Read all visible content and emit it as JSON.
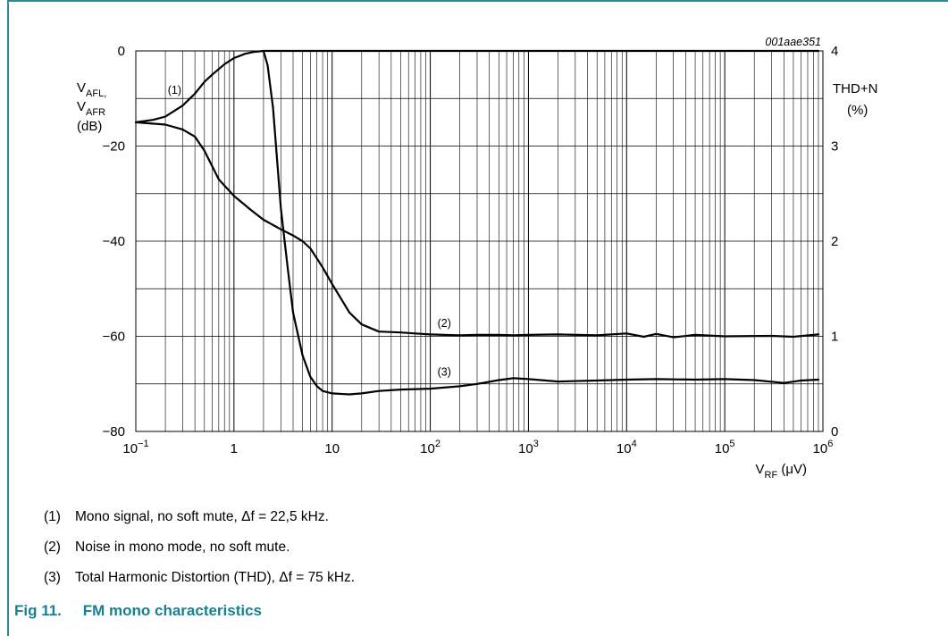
{
  "page": {
    "figure_number": "Fig 11.",
    "figure_title": "FM mono characteristics",
    "notes": [
      {
        "num": "(1)",
        "text": "Mono signal, no soft mute, Δf = 22,5 kHz."
      },
      {
        "num": "(2)",
        "text": "Noise in mono mode, no soft mute."
      },
      {
        "num": "(3)",
        "text": "Total Harmonic Distortion (THD), Δf = 75 kHz."
      }
    ]
  },
  "colors": {
    "accent": "#1a7f8f",
    "frame": "#2d8a99",
    "curve": "#000000",
    "grid": "#000000"
  },
  "chart_data": {
    "type": "line",
    "id_label": "001aae351",
    "x_scale": "log",
    "xlim": [
      0.1,
      1000000
    ],
    "x_ticks": [
      {
        "v": 0.1,
        "base": "10",
        "exp": "−1"
      },
      {
        "v": 1,
        "base": "1",
        "exp": ""
      },
      {
        "v": 10,
        "base": "10",
        "exp": ""
      },
      {
        "v": 100,
        "base": "10",
        "exp": "2"
      },
      {
        "v": 1000,
        "base": "10",
        "exp": "3"
      },
      {
        "v": 10000,
        "base": "10",
        "exp": "4"
      },
      {
        "v": 100000,
        "base": "10",
        "exp": "5"
      },
      {
        "v": 1000000,
        "base": "10",
        "exp": "6"
      }
    ],
    "xlabel": {
      "main": "V",
      "sub": "RF",
      "unit": " (μV)"
    },
    "ylim": [
      -80,
      0
    ],
    "y_ticks": [
      "0",
      "−20",
      "−40",
      "−60",
      "−80"
    ],
    "y_tick_values": [
      0,
      -20,
      -40,
      -60,
      -80
    ],
    "y_minor": [
      -10,
      -30,
      -50,
      -70
    ],
    "ylabel": {
      "line1_main": "V",
      "line1_sub": "AFL,",
      "line2_main": "V",
      "line2_sub": "AFR",
      "line3": "(dB)"
    },
    "y2lim": [
      0,
      4
    ],
    "y2_ticks": [
      "0",
      "1",
      "2",
      "3",
      "4"
    ],
    "y2_tick_values": [
      0,
      1,
      2,
      3,
      4
    ],
    "y2label": {
      "line1": "THD+N",
      "line2": "(%)"
    },
    "grid": true,
    "series": [
      {
        "name": "(1)",
        "axis": "left",
        "x": [
          0.1,
          0.15,
          0.2,
          0.3,
          0.4,
          0.5,
          0.6,
          0.8,
          1,
          1.3,
          1.6,
          2,
          10,
          100,
          1000,
          10000,
          100000,
          900000
        ],
        "y": [
          -15,
          -14.5,
          -13.8,
          -11.5,
          -9,
          -6.5,
          -5,
          -2.8,
          -1.5,
          -0.6,
          -0.2,
          0,
          0,
          0,
          0,
          0,
          0,
          0
        ],
        "label_pos": [
          0.25,
          -9
        ]
      },
      {
        "name": "(2)",
        "axis": "left",
        "x": [
          0.1,
          0.2,
          0.3,
          0.4,
          0.5,
          0.7,
          1,
          1.5,
          2,
          3,
          4,
          5,
          6,
          8,
          10,
          15,
          20,
          30,
          50,
          70,
          100,
          200,
          300,
          500,
          700,
          1000,
          2000,
          5000,
          10000,
          15000,
          20000,
          30000,
          50000,
          100000,
          300000,
          500000,
          900000
        ],
        "y": [
          -15,
          -15.5,
          -16.5,
          -18,
          -21,
          -27,
          -30.5,
          -33.5,
          -35.5,
          -37.5,
          -38.8,
          -40,
          -41.5,
          -45.5,
          -49,
          -55,
          -57.5,
          -59,
          -59.2,
          -59.4,
          -59.6,
          -59.8,
          -59.7,
          -59.7,
          -59.8,
          -59.7,
          -59.6,
          -59.8,
          -59.4,
          -60.1,
          -59.5,
          -60.2,
          -59.7,
          -60,
          -59.9,
          -60.1,
          -59.6
        ],
        "label_pos": [
          140,
          -58
        ]
      },
      {
        "name": "(3)",
        "axis": "left",
        "x": [
          2,
          2.2,
          2.5,
          3,
          3.5,
          4,
          5,
          6,
          7,
          8,
          10,
          15,
          20,
          30,
          50,
          100,
          200,
          300,
          500,
          700,
          1000,
          2000,
          5000,
          10000,
          20000,
          50000,
          100000,
          200000,
          400000,
          600000,
          900000
        ],
        "y": [
          0,
          -3,
          -12,
          -33,
          -45,
          -55,
          -64,
          -68.5,
          -70.5,
          -71.5,
          -72,
          -72.2,
          -72,
          -71.5,
          -71.2,
          -71,
          -70.5,
          -70,
          -69.2,
          -68.8,
          -69,
          -69.5,
          -69.3,
          -69.1,
          -69,
          -69.1,
          -69,
          -69.2,
          -69.8,
          -69.3,
          -69.1
        ],
        "label_pos": [
          140,
          -68.3
        ]
      }
    ]
  }
}
